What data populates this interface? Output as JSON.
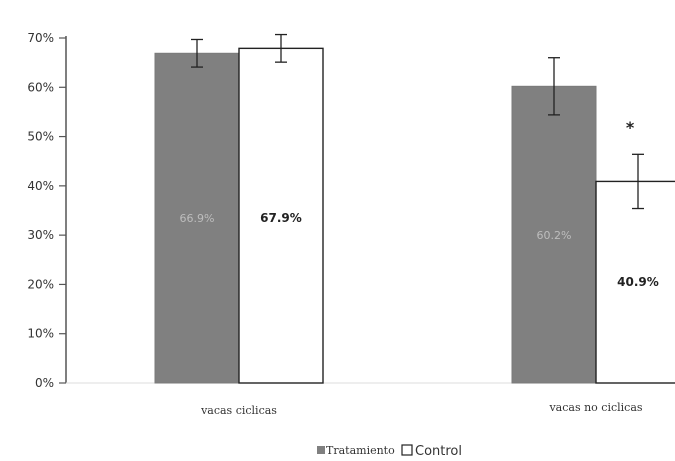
{
  "chart_data": {
    "type": "bar",
    "title": "",
    "xlabel": "",
    "ylabel": "",
    "categories": [
      "vacas ciclicas",
      "vacas no ciclicas"
    ],
    "series": [
      {
        "name": "Tratamiento",
        "values": [
          66.9,
          60.2
        ],
        "error": [
          2.8,
          5.8
        ],
        "labels": [
          "66.9%",
          "60.2%"
        ],
        "color": "#808080"
      },
      {
        "name": "Control",
        "values": [
          67.9,
          40.9
        ],
        "error": [
          2.8,
          5.5
        ],
        "labels": [
          "67.9%",
          "40.9%"
        ],
        "color": "#ffffff"
      }
    ],
    "ylim": [
      0,
      70
    ],
    "yticks": [
      0,
      10,
      20,
      30,
      40,
      50,
      60,
      70
    ],
    "ytick_labels": [
      "0%",
      "10%",
      "20%",
      "30%",
      "40%",
      "50%",
      "60%",
      "70%"
    ],
    "grid": false,
    "legend_position": "bottom-center",
    "annotations": [
      {
        "text": "*",
        "category": "vacas no ciclicas",
        "series": "Control"
      }
    ]
  },
  "legend": {
    "tratamiento": "Tratamiento",
    "control": "Control"
  }
}
